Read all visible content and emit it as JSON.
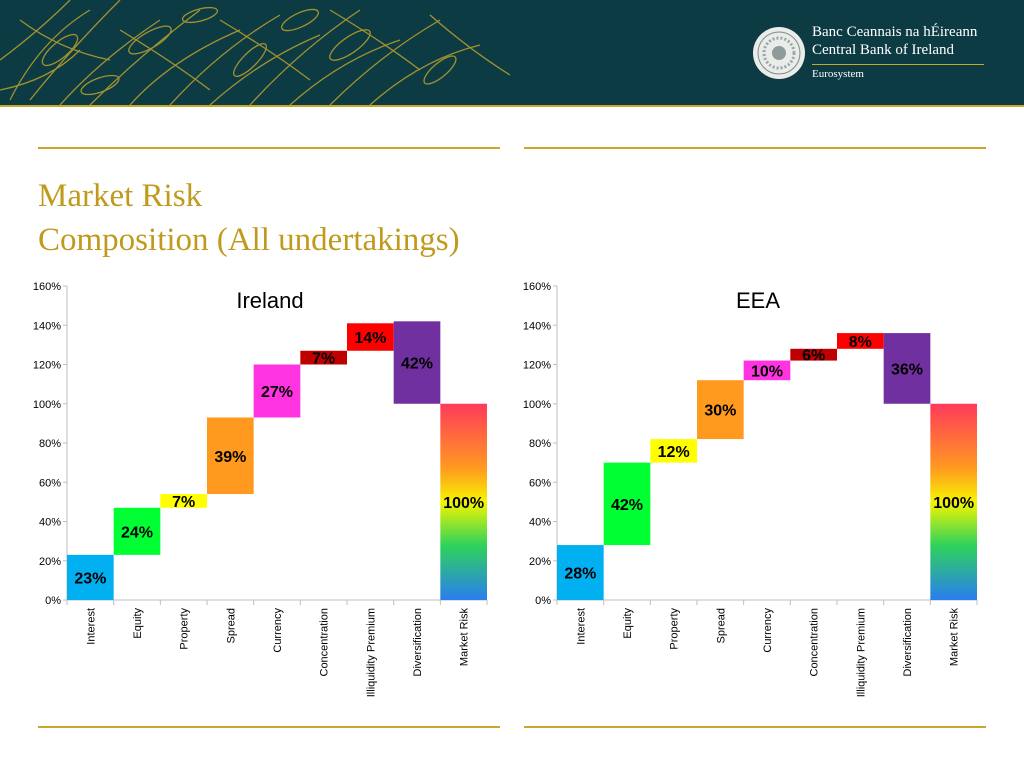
{
  "brand": {
    "irish_name": "Banc Ceannais na hÉireann",
    "english_name": "Central Bank of Ireland",
    "eurosystem": "Eurosystem",
    "colors": {
      "banner": "#0d3b44",
      "gold": "#c8a82a",
      "title": "#c09a1c"
    }
  },
  "slide": {
    "title_line1": "Market Risk",
    "title_line2": "Composition (All undertakings)"
  },
  "chart_data": [
    {
      "type": "bar",
      "subtype": "waterfall",
      "title": "Ireland",
      "categories": [
        "Interest",
        "Equity",
        "Property",
        "Spread",
        "Currency",
        "Concentration",
        "Illiquidity Premium",
        "Diversification",
        "Market Risk"
      ],
      "start": [
        0,
        23,
        47,
        54,
        93,
        120,
        127,
        100,
        0
      ],
      "end": [
        23,
        47,
        54,
        93,
        120,
        127,
        141,
        142,
        100
      ],
      "labels": [
        "23%",
        "24%",
        "7%",
        "39%",
        "27%",
        "7%",
        "14%",
        "42%",
        "100%"
      ],
      "colors": [
        "#00b0f0",
        "#00ff33",
        "#ffff00",
        "#ff9a1f",
        "#ff33e0",
        "#c00000",
        "#ff0000",
        "#7030a0",
        "gradient"
      ],
      "ytick_labels": [
        "0%",
        "20%",
        "40%",
        "60%",
        "80%",
        "100%",
        "120%",
        "140%",
        "160%"
      ],
      "ylim": [
        0,
        160
      ],
      "grid": false,
      "legend": "none"
    },
    {
      "type": "bar",
      "subtype": "waterfall",
      "title": "EEA",
      "categories": [
        "Interest",
        "Equity",
        "Property",
        "Spread",
        "Currency",
        "Concentration",
        "Illiquidity Premium",
        "Diversification",
        "Market Risk"
      ],
      "start": [
        0,
        28,
        70,
        82,
        112,
        122,
        128,
        100,
        0
      ],
      "end": [
        28,
        70,
        82,
        112,
        122,
        128,
        136,
        136,
        100
      ],
      "labels": [
        "28%",
        "42%",
        "12%",
        "30%",
        "10%",
        "6%",
        "8%",
        "36%",
        "100%"
      ],
      "colors": [
        "#00b0f0",
        "#00ff33",
        "#ffff00",
        "#ff9a1f",
        "#ff33e0",
        "#c00000",
        "#ff0000",
        "#7030a0",
        "gradient"
      ],
      "ytick_labels": [
        "0%",
        "20%",
        "40%",
        "60%",
        "80%",
        "100%",
        "120%",
        "140%",
        "160%"
      ],
      "ylim": [
        0,
        160
      ],
      "grid": false,
      "legend": "none"
    }
  ]
}
